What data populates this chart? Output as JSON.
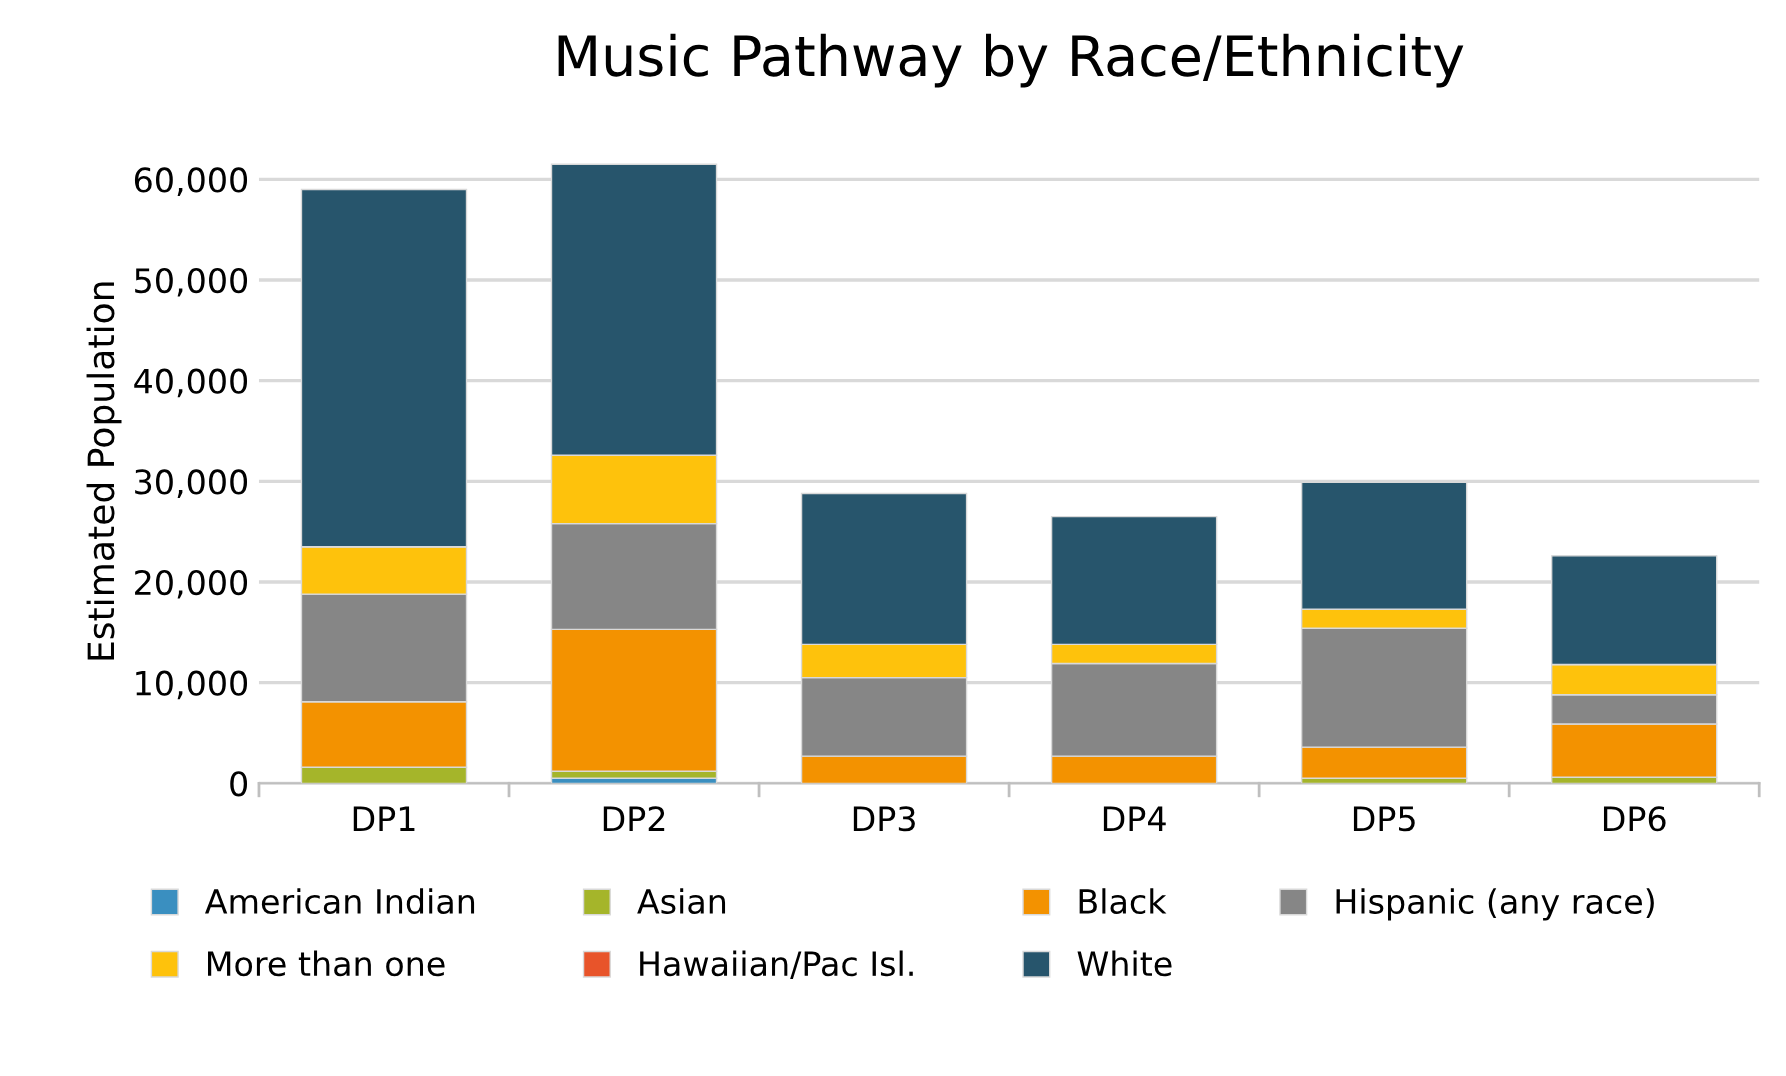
{
  "chart_data": {
    "type": "bar",
    "title": "Music Pathway by Race/Ethnicity",
    "ylabel": "Estimated Population",
    "categories": [
      "DP1",
      "DP2",
      "DP3",
      "DP4",
      "DP5",
      "DP6"
    ],
    "stacked": true,
    "grid": "y",
    "legend": "bottom",
    "ylim": [
      0,
      62000
    ],
    "yticks": [
      {
        "value": 0,
        "label": "0"
      },
      {
        "value": 10000,
        "label": "10,000"
      },
      {
        "value": 20000,
        "label": "20,000"
      },
      {
        "value": 30000,
        "label": "30,000"
      },
      {
        "value": 40000,
        "label": "40,000"
      },
      {
        "value": 50000,
        "label": "50,000"
      },
      {
        "value": 60000,
        "label": "60,000"
      }
    ],
    "series": [
      {
        "name": "American Indian",
        "color": "#3a8fc0",
        "values": [
          null,
          500,
          0,
          0,
          null,
          null
        ]
      },
      {
        "name": "Asian",
        "color": "#a5b52a",
        "values": [
          1600,
          700,
          null,
          null,
          500,
          600
        ]
      },
      {
        "name": "Black",
        "color": "#f39200",
        "values": [
          6500,
          14100,
          2700,
          2700,
          3100,
          5300
        ]
      },
      {
        "name": "Hispanic (any race)",
        "color": "#868686",
        "values": [
          10700,
          10500,
          7800,
          9200,
          11800,
          2900
        ]
      },
      {
        "name": "More than one",
        "color": "#fec20c",
        "values": [
          4700,
          6800,
          3300,
          1900,
          1900,
          3000
        ]
      },
      {
        "name": "Hawaiian/Pac Isl.",
        "color": "#e8542a",
        "values": [
          0,
          0,
          0,
          0,
          0,
          0
        ]
      },
      {
        "name": "White",
        "color": "#27556c",
        "values": [
          35500,
          28900,
          15000,
          12700,
          12600,
          10800
        ]
      }
    ]
  }
}
